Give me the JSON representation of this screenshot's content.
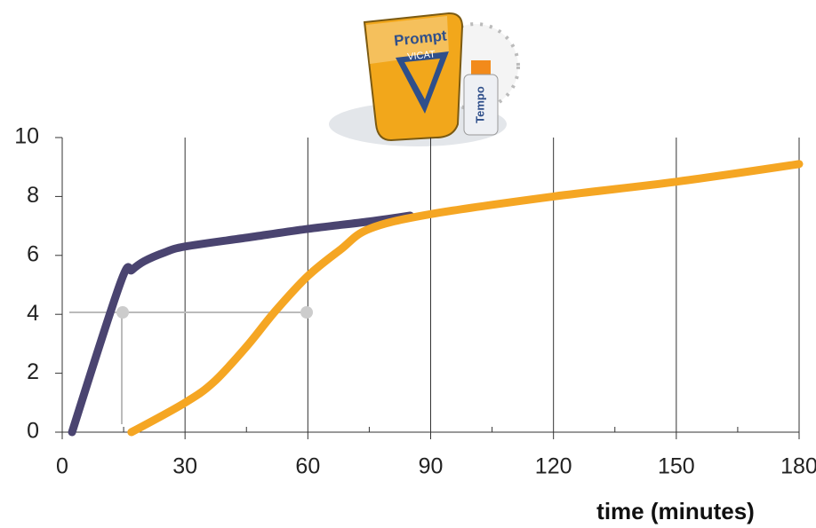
{
  "logo": {
    "brand": "Prompt",
    "maker": "VICAT",
    "product": "Tempo"
  },
  "chart_data": {
    "type": "line",
    "xlabel": "time (minutes)",
    "xlim": [
      0,
      180
    ],
    "xticks": [
      0,
      30,
      60,
      90,
      120,
      150,
      180
    ],
    "ylim": [
      0,
      10
    ],
    "yticks": [
      0,
      2,
      4,
      6,
      8,
      10
    ],
    "grid": true,
    "series": [
      {
        "color": "#4a4470",
        "x": [
          2.4,
          14.3,
          17,
          20,
          25,
          30,
          45,
          60,
          75,
          85
        ],
        "values": [
          0,
          5.1,
          5.5,
          5.8,
          6.1,
          6.3,
          6.6,
          6.9,
          7.15,
          7.35
        ]
      },
      {
        "color": "#f5a623",
        "x": [
          16.9,
          30,
          37,
          45,
          52,
          60,
          68,
          75,
          90,
          120,
          150,
          180
        ],
        "values": [
          0,
          1,
          1.7,
          2.9,
          4.1,
          5.3,
          6.2,
          6.9,
          7.4,
          8.0,
          8.5,
          9.1
        ]
      }
    ]
  }
}
